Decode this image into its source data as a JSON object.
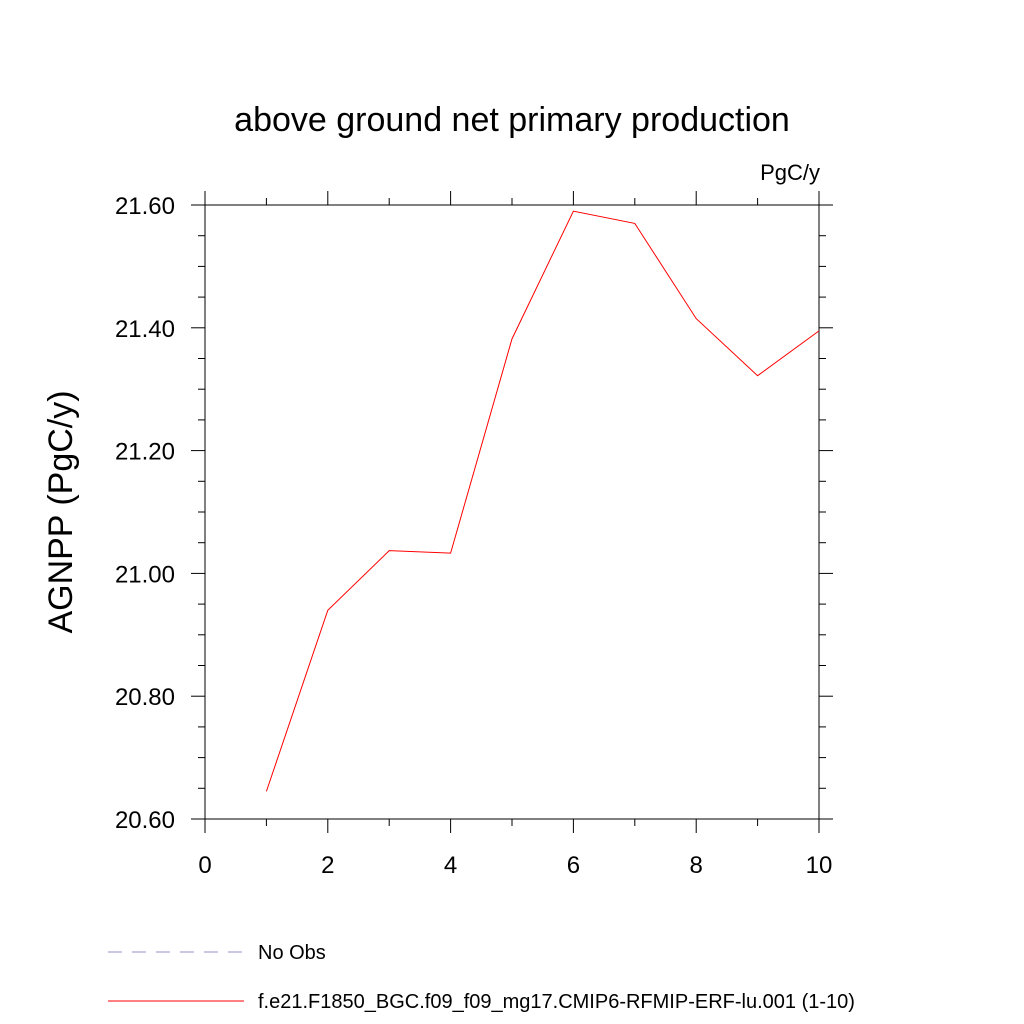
{
  "chart_data": {
    "type": "line",
    "title": "above ground net primary production",
    "units_label": "PgC/y",
    "ylabel": "AGNPP  (PgC/y)",
    "xlabel": "",
    "xlim": [
      0,
      10
    ],
    "ylim": [
      20.6,
      21.6
    ],
    "xticks": [
      0,
      2,
      4,
      6,
      8,
      10
    ],
    "xtick_labels": [
      "0",
      "2",
      "4",
      "6",
      "8",
      "10"
    ],
    "yticks": [
      20.6,
      20.8,
      21.0,
      21.2,
      21.4,
      21.6
    ],
    "ytick_labels": [
      "20.60",
      "20.80",
      "21.00",
      "21.20",
      "21.40",
      "21.60"
    ],
    "grid": false,
    "legend_position": "bottom",
    "series": [
      {
        "name": "No Obs",
        "color": "#9a8fc4",
        "dashed": true,
        "x": [],
        "values": []
      },
      {
        "name": "f.e21.F1850_BGC.f09_f09_mg17.CMIP6-RFMIP-ERF-lu.001 (1-10)",
        "color": "#ff0000",
        "dashed": false,
        "x": [
          1,
          2,
          3,
          4,
          5,
          6,
          7,
          8,
          9,
          10
        ],
        "values": [
          20.645,
          20.94,
          21.037,
          21.033,
          21.382,
          21.59,
          21.57,
          21.415,
          21.322,
          21.395
        ]
      }
    ]
  }
}
